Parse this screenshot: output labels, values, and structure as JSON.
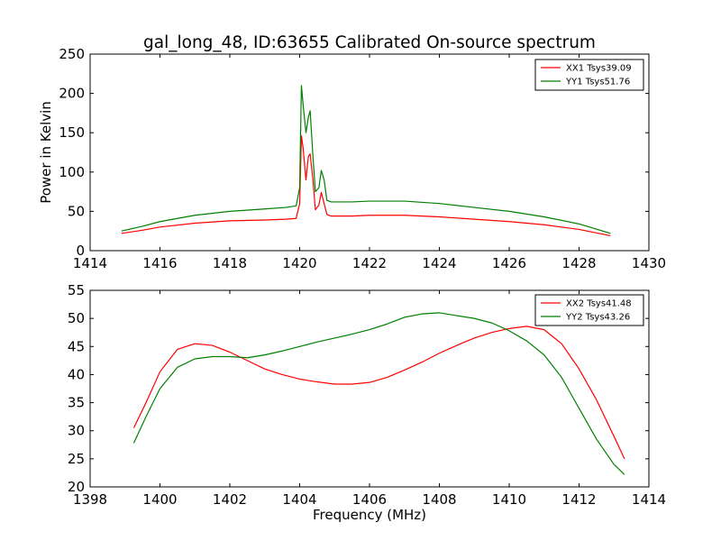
{
  "title": "gal_long_48, ID:63655 Calibrated On-source spectrum",
  "colors": {
    "red": "#ff0000",
    "green": "#008000",
    "axes": "#000000",
    "background": "#ffffff"
  },
  "chart_data": [
    {
      "type": "line",
      "title": "gal_long_48, ID:63655 Calibrated On-source spectrum",
      "xlabel": "",
      "ylabel": "Power in Kelvin",
      "xlim": [
        1414,
        1430
      ],
      "ylim": [
        0,
        250
      ],
      "xticks": [
        1414,
        1416,
        1418,
        1420,
        1422,
        1424,
        1426,
        1428,
        1430
      ],
      "yticks": [
        0,
        50,
        100,
        150,
        200,
        250
      ],
      "grid": false,
      "legend_position": "top-right",
      "series": [
        {
          "name": "XX1 Tsys39.09",
          "color": "#ff0000",
          "x": [
            1414.9,
            1415.5,
            1416,
            1417,
            1418,
            1419,
            1419.6,
            1419.9,
            1420.0,
            1420.05,
            1420.1,
            1420.18,
            1420.25,
            1420.3,
            1420.38,
            1420.45,
            1420.55,
            1420.62,
            1420.7,
            1420.78,
            1420.9,
            1421.5,
            1422,
            1423,
            1424,
            1425,
            1426,
            1427,
            1428,
            1428.9
          ],
          "y": [
            22,
            26,
            30,
            35,
            38,
            39,
            40,
            41,
            60,
            146,
            130,
            90,
            120,
            123,
            90,
            52,
            58,
            74,
            60,
            46,
            44,
            44,
            45,
            45,
            43,
            40,
            37,
            33,
            27,
            19
          ]
        },
        {
          "name": "YY1 Tsys51.76",
          "color": "#008000",
          "x": [
            1414.9,
            1415.5,
            1416,
            1417,
            1418,
            1419,
            1419.6,
            1419.9,
            1420.0,
            1420.05,
            1420.1,
            1420.18,
            1420.25,
            1420.3,
            1420.38,
            1420.45,
            1420.55,
            1420.62,
            1420.7,
            1420.78,
            1420.9,
            1421.5,
            1422,
            1423,
            1424,
            1425,
            1426,
            1427,
            1428,
            1428.9
          ],
          "y": [
            25,
            31,
            37,
            45,
            50,
            53,
            55,
            57,
            80,
            210,
            185,
            150,
            170,
            178,
            120,
            75,
            80,
            102,
            90,
            64,
            62,
            62,
            63,
            63,
            60,
            55,
            50,
            43,
            34,
            22
          ]
        }
      ]
    },
    {
      "type": "line",
      "xlabel": "Frequency (MHz)",
      "ylabel": "",
      "xlim": [
        1398,
        1414
      ],
      "ylim": [
        20,
        55
      ],
      "xticks": [
        1398,
        1400,
        1402,
        1404,
        1406,
        1408,
        1410,
        1412,
        1414
      ],
      "yticks": [
        20,
        25,
        30,
        35,
        40,
        45,
        50,
        55
      ],
      "grid": false,
      "legend_position": "top-right",
      "series": [
        {
          "name": "XX2 Tsys41.48",
          "color": "#ff0000",
          "x": [
            1399.25,
            1399.6,
            1400,
            1400.5,
            1401,
            1401.5,
            1402,
            1402.5,
            1403,
            1403.5,
            1404,
            1404.5,
            1405,
            1405.5,
            1406,
            1406.5,
            1407,
            1407.5,
            1408,
            1408.5,
            1409,
            1409.5,
            1410,
            1410.5,
            1411,
            1411.5,
            1412,
            1412.5,
            1413,
            1413.3
          ],
          "y": [
            30.5,
            35,
            40.5,
            44.5,
            45.5,
            45.2,
            44,
            42.5,
            41,
            40,
            39.2,
            38.7,
            38.3,
            38.3,
            38.6,
            39.5,
            40.8,
            42.2,
            43.8,
            45.2,
            46.5,
            47.5,
            48.2,
            48.6,
            48,
            45.5,
            41,
            35.5,
            29,
            25
          ]
        },
        {
          "name": "YY2 Tsys43.26",
          "color": "#008000",
          "x": [
            1399.25,
            1399.6,
            1400,
            1400.5,
            1401,
            1401.5,
            1402,
            1402.5,
            1403,
            1403.5,
            1404,
            1404.5,
            1405,
            1405.5,
            1406,
            1406.5,
            1407,
            1407.5,
            1408,
            1408.5,
            1409,
            1409.5,
            1410,
            1410.5,
            1411,
            1411.5,
            1412,
            1412.5,
            1413,
            1413.3
          ],
          "y": [
            27.8,
            32.5,
            37.5,
            41.3,
            42.8,
            43.2,
            43.2,
            43,
            43.5,
            44.2,
            45,
            45.8,
            46.5,
            47.2,
            48,
            49,
            50.2,
            50.8,
            51,
            50.5,
            50,
            49.2,
            47.8,
            46,
            43.5,
            39.5,
            34,
            28.5,
            24,
            22.2
          ]
        }
      ]
    }
  ]
}
